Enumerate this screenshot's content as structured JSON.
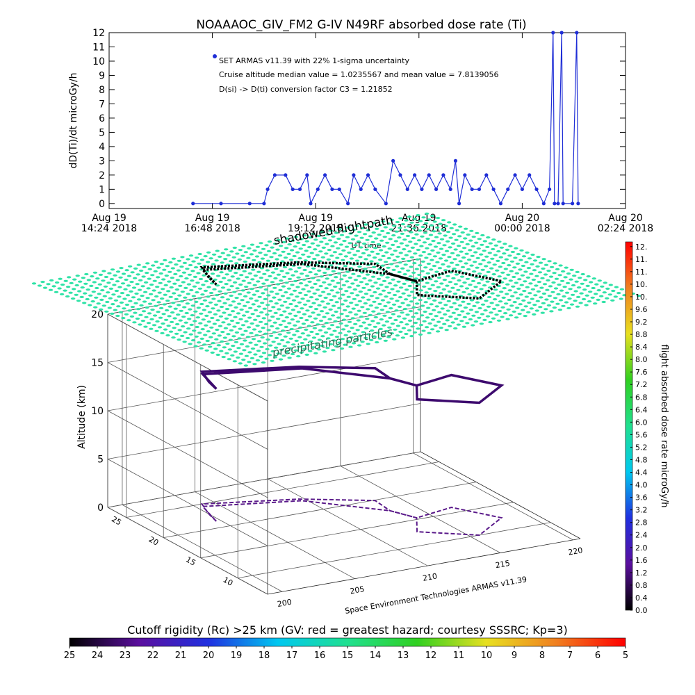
{
  "chart_data": [
    {
      "type": "line",
      "title": "NOAAAOC_GIV_FM2 G-IV    N49RF  absorbed dose rate (Ti)",
      "ylabel": "dD(Ti)/dt microGy/h",
      "xlabel": "UT time",
      "annotations": [
        "Cruise altitude median value = 1.0235567 and mean value = 7.8139056",
        "D(si) -> D(ti) conversion factor C3 = 1.21852"
      ],
      "xlim": [
        "2018-08-19T14:24",
        "2018-08-20T02:24"
      ],
      "xticks": [
        {
          "value": "2018-08-19T14:24",
          "label": "Aug 19\n14:24 2018"
        },
        {
          "value": "2018-08-19T16:48",
          "label": "Aug 19\n16:48 2018"
        },
        {
          "value": "2018-08-19T19:12",
          "label": "Aug 19\n19:12 2018"
        },
        {
          "value": "2018-08-19T21:36",
          "label": "Aug 19\n21:36 2018"
        },
        {
          "value": "2018-08-20T00:00",
          "label": "Aug 20\n00:00 2018"
        },
        {
          "value": "2018-08-20T02:24",
          "label": "Aug 20\n02:24 2018"
        }
      ],
      "ylim": [
        -0.35,
        12
      ],
      "yticks": [
        0,
        1,
        2,
        3,
        4,
        5,
        6,
        7,
        8,
        9,
        10,
        11,
        12
      ],
      "x": [
        "2018-08-19T16:21",
        "2018-08-19T17:00",
        "2018-08-19T17:40",
        "2018-08-19T18:00",
        "2018-08-19T18:05",
        "2018-08-19T18:15",
        "2018-08-19T18:30",
        "2018-08-19T18:40",
        "2018-08-19T18:50",
        "2018-08-19T19:00",
        "2018-08-19T19:05",
        "2018-08-19T19:15",
        "2018-08-19T19:25",
        "2018-08-19T19:35",
        "2018-08-19T19:45",
        "2018-08-19T19:57",
        "2018-08-19T20:05",
        "2018-08-19T20:15",
        "2018-08-19T20:25",
        "2018-08-19T20:35",
        "2018-08-19T20:50",
        "2018-08-19T21:00",
        "2018-08-19T21:10",
        "2018-08-19T21:20",
        "2018-08-19T21:30",
        "2018-08-19T21:40",
        "2018-08-19T21:50",
        "2018-08-19T22:00",
        "2018-08-19T22:10",
        "2018-08-19T22:20",
        "2018-08-19T22:27",
        "2018-08-19T22:32",
        "2018-08-19T22:40",
        "2018-08-19T22:50",
        "2018-08-19T23:00",
        "2018-08-19T23:10",
        "2018-08-19T23:20",
        "2018-08-19T23:30",
        "2018-08-19T23:40",
        "2018-08-19T23:50",
        "2018-08-20T00:00",
        "2018-08-20T00:10",
        "2018-08-20T00:20",
        "2018-08-20T00:30",
        "2018-08-20T00:38",
        "2018-08-20T00:43",
        "2018-08-20T00:45",
        "2018-08-20T00:50",
        "2018-08-20T00:55",
        "2018-08-20T00:57",
        "2018-08-20T01:10",
        "2018-08-20T01:16",
        "2018-08-20T01:18"
      ],
      "series": [
        {
          "name": "SET ARMAS v11.39 with 22% 1-sigma uncertainty",
          "color": "#1f2ed6",
          "values": [
            0,
            0,
            0,
            0,
            1,
            2,
            2,
            1,
            1,
            2,
            0,
            1,
            2,
            1,
            1,
            0,
            2,
            1,
            2,
            1,
            0,
            3,
            2,
            1,
            2,
            1,
            2,
            1,
            2,
            1,
            3,
            0,
            2,
            1,
            1,
            2,
            1,
            0,
            1,
            2,
            1,
            2,
            1,
            0,
            1,
            12,
            0,
            0,
            12,
            0,
            0,
            12,
            0
          ]
        }
      ]
    },
    {
      "type": "track3d",
      "annotations": [
        "shadowed flightpath",
        "precipitating particles"
      ],
      "zlabel": "Altitude (km)",
      "footer": "Space Environment Technologies ARMAS v11.39",
      "xlim": [
        199,
        220.5
      ],
      "xticks": [
        200,
        205,
        210,
        215,
        220
      ],
      "ylim": [
        6,
        27.5
      ],
      "yticks": [
        10,
        15,
        20,
        25
      ],
      "zlim": [
        0,
        20
      ],
      "zticks": [
        0,
        5,
        10,
        15,
        20
      ],
      "grid": true,
      "track": {
        "lon": [
          203.3,
          203.6,
          204.2,
          209.7,
          213.5,
          213.3,
          214,
          216.8,
          218.4,
          215.6,
          212.7,
          214,
          213.3,
          209.7,
          204,
          203.3
        ],
        "lat": [
          21.3,
          22.9,
          25,
          22.7,
          19.9,
          17.5,
          15.3,
          16.1,
          12.5,
          10,
          12.7,
          15.3,
          17.5,
          22.3,
          24.5,
          21.3
        ]
      },
      "track_levels": [
        0,
        13.7,
        24.5
      ],
      "track_colors": [
        "#5a1a8a",
        "#3d0a6e",
        "#000000"
      ],
      "particle_color": "#2fe2a6"
    },
    {
      "type": "colorbar",
      "orientation": "vertical",
      "label": "flight absorbed dose rate microGy/h",
      "colors": [
        "#000000",
        "#5b0f9e",
        "#2030e0",
        "#00c8f0",
        "#20e090",
        "#30d020",
        "#e8e020",
        "#f08020",
        "#ff0000"
      ],
      "ylim": [
        0,
        11.75
      ],
      "yticks": [
        {
          "value": 0,
          "label": "0.0"
        },
        {
          "value": 0.4,
          "label": "0.4"
        },
        {
          "value": 0.8,
          "label": "0.8"
        },
        {
          "value": 1.2,
          "label": "1.2"
        },
        {
          "value": 1.6,
          "label": "1.6"
        },
        {
          "value": 2,
          "label": "2.0"
        },
        {
          "value": 2.4,
          "label": "2.4"
        },
        {
          "value": 2.8,
          "label": "2.8"
        },
        {
          "value": 3.2,
          "label": "3.2"
        },
        {
          "value": 3.6,
          "label": "3.6"
        },
        {
          "value": 4,
          "label": "4.0"
        },
        {
          "value": 4.4,
          "label": "4.4"
        },
        {
          "value": 4.8,
          "label": "4.8"
        },
        {
          "value": 5.2,
          "label": "5.2"
        },
        {
          "value": 5.6,
          "label": "5.6"
        },
        {
          "value": 6,
          "label": "6.0"
        },
        {
          "value": 6.4,
          "label": "6.4"
        },
        {
          "value": 6.8,
          "label": "6.8"
        },
        {
          "value": 7.2,
          "label": "7.2"
        },
        {
          "value": 7.6,
          "label": "7.6"
        },
        {
          "value": 8,
          "label": "8.0"
        },
        {
          "value": 8.4,
          "label": "8.4"
        },
        {
          "value": 8.8,
          "label": "8.8"
        },
        {
          "value": 9.2,
          "label": "9.2"
        },
        {
          "value": 9.6,
          "label": "9.6"
        },
        {
          "value": 10,
          "label": "10."
        },
        {
          "value": 10.4,
          "label": "10."
        },
        {
          "value": 10.8,
          "label": "11."
        },
        {
          "value": 11.2,
          "label": "11."
        },
        {
          "value": 11.6,
          "label": "12."
        }
      ]
    },
    {
      "type": "colorbar",
      "orientation": "horizontal",
      "label": "Cutoff rigidity (Rc) >25 km (GV: red = greatest hazard; courtesy SSSRC; Kp=3)",
      "colors": [
        "#000000",
        "#5b0f9e",
        "#2030e0",
        "#00c8f0",
        "#20e090",
        "#30d020",
        "#e8e020",
        "#f08020",
        "#ff0000"
      ],
      "xlim": [
        25,
        5
      ],
      "xticks": [
        25,
        24,
        23,
        22,
        21,
        20,
        19,
        18,
        17,
        16,
        15,
        14,
        13,
        12,
        11,
        10,
        9,
        8,
        7,
        6,
        5
      ]
    }
  ]
}
